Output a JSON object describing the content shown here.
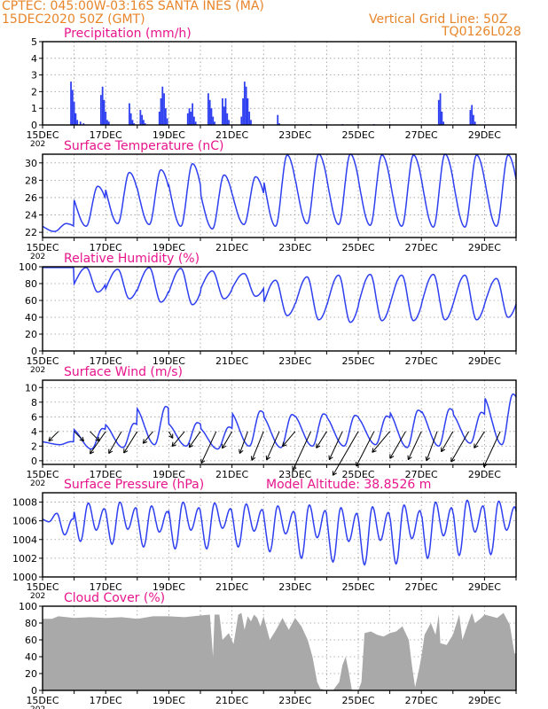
{
  "header": {
    "station": "CPTEC:   045:00W-03:16S   SANTA INES (MA)",
    "date": "15DEC2020 50Z (GMT)",
    "grid": "Vertical Grid Line: 50Z",
    "code": "TQ0126L028"
  },
  "colors": {
    "header": "#e8852a",
    "title": "#e8148c",
    "series": "#2e3ff0",
    "cloud": "#a9a9a9",
    "wind_arrow": "#000000"
  },
  "x_axis": {
    "labels": [
      "15DEC",
      "17DEC",
      "19DEC",
      "21DEC",
      "23DEC",
      "25DEC",
      "27DEC",
      "29DEC"
    ],
    "year_stub": "202"
  },
  "chart_data": [
    {
      "id": "precip",
      "type": "bar",
      "title": "Precipitation  (mm/h)",
      "ylim": [
        0,
        5
      ],
      "yticks": [
        "0",
        "1",
        "2",
        "3",
        "4",
        "5"
      ],
      "days": [
        0,
        15
      ],
      "grid": true,
      "bars": [
        [
          0.9,
          2.6
        ],
        [
          0.95,
          2.1
        ],
        [
          1.0,
          1.4
        ],
        [
          1.05,
          0.7
        ],
        [
          1.1,
          0.3
        ],
        [
          1.2,
          0.2
        ],
        [
          1.3,
          0.1
        ],
        [
          1.85,
          1.8
        ],
        [
          1.9,
          2.3
        ],
        [
          1.95,
          1.5
        ],
        [
          2.0,
          0.8
        ],
        [
          2.05,
          0.3
        ],
        [
          2.1,
          0.2
        ],
        [
          2.75,
          1.3
        ],
        [
          2.8,
          0.7
        ],
        [
          2.85,
          0.3
        ],
        [
          2.9,
          0.1
        ],
        [
          3.1,
          0.9
        ],
        [
          3.15,
          0.6
        ],
        [
          3.2,
          0.3
        ],
        [
          3.25,
          0.1
        ],
        [
          3.7,
          0.8
        ],
        [
          3.75,
          1.6
        ],
        [
          3.8,
          2.3
        ],
        [
          3.85,
          1.9
        ],
        [
          3.9,
          1.0
        ],
        [
          3.95,
          0.4
        ],
        [
          4.6,
          0.7
        ],
        [
          4.65,
          1.0
        ],
        [
          4.7,
          0.8
        ],
        [
          4.75,
          1.3
        ],
        [
          4.8,
          0.5
        ],
        [
          4.85,
          0.2
        ],
        [
          5.25,
          1.9
        ],
        [
          5.3,
          1.5
        ],
        [
          5.35,
          1.0
        ],
        [
          5.4,
          0.5
        ],
        [
          5.45,
          0.2
        ],
        [
          5.7,
          1.6
        ],
        [
          5.75,
          1.1
        ],
        [
          5.8,
          1.6
        ],
        [
          5.85,
          0.7
        ],
        [
          5.9,
          0.3
        ],
        [
          6.3,
          0.5
        ],
        [
          6.35,
          1.6
        ],
        [
          6.4,
          2.6
        ],
        [
          6.45,
          2.3
        ],
        [
          6.5,
          1.6
        ],
        [
          6.55,
          0.8
        ],
        [
          6.6,
          0.3
        ],
        [
          7.45,
          0.6
        ],
        [
          7.5,
          0.1
        ],
        [
          8.5,
          0.05
        ],
        [
          9.0,
          0.05
        ],
        [
          9.5,
          0.05
        ],
        [
          10.0,
          0.05
        ],
        [
          10.5,
          0.05
        ],
        [
          11.0,
          0.05
        ],
        [
          12.55,
          1.5
        ],
        [
          12.6,
          1.9
        ],
        [
          12.65,
          0.8
        ],
        [
          12.7,
          0.2
        ],
        [
          13.55,
          0.9
        ],
        [
          13.6,
          1.2
        ],
        [
          13.65,
          0.6
        ],
        [
          13.7,
          0.2
        ]
      ]
    },
    {
      "id": "temp",
      "type": "line",
      "title": "Surface Temperature  (nC)",
      "ylim": [
        21.4,
        31
      ],
      "ytick_values": [
        22,
        24,
        26,
        28,
        30
      ],
      "days": [
        0,
        15
      ],
      "grid": true,
      "pattern": {
        "min_time_of_day": 0.38,
        "peak_time_of_day": 0.75,
        "daily_min": [
          22.1,
          22.7,
          23.0,
          22.9,
          22.7,
          22.4,
          22.9,
          22.7,
          23.0,
          22.9,
          22.8,
          22.7,
          22.6,
          22.6,
          22.7,
          22.7
        ],
        "daily_max": [
          23.0,
          27.3,
          28.9,
          29.2,
          29.9,
          28.6,
          28.4,
          30.9,
          31.0,
          31.0,
          30.9,
          30.9,
          31.0,
          30.9,
          30.9,
          30.9
        ]
      }
    },
    {
      "id": "rh",
      "type": "line",
      "title": "Relative Humidity  (%)",
      "ylim": [
        0,
        100
      ],
      "ytick_values": [
        0,
        20,
        40,
        60,
        80,
        100
      ],
      "days": [
        0,
        15
      ],
      "grid": true,
      "pattern": {
        "min_time_of_day": 0.75,
        "peak_time_of_day": 0.38,
        "daily_min": [
          99,
          70,
          62,
          58,
          55,
          62,
          65,
          42,
          37,
          34,
          36,
          36,
          37,
          37,
          40,
          40
        ],
        "daily_max": [
          99,
          99,
          97,
          99,
          98,
          95,
          92,
          84,
          88,
          90,
          91,
          90,
          91,
          90,
          86,
          78
        ]
      }
    },
    {
      "id": "wind",
      "type": "line",
      "title": "Surface Wind  (m/s)",
      "ylim": [
        -0.5,
        11
      ],
      "ytick_values": [
        0,
        2,
        4,
        6,
        8,
        10
      ],
      "days": [
        0,
        15
      ],
      "grid": true,
      "pattern": {
        "min_time_of_day": 0.55,
        "peak_time_of_day": 0.9,
        "daily_min": [
          2.2,
          1.6,
          1.8,
          2.2,
          2.0,
          1.6,
          2.0,
          1.8,
          2.0,
          2.0,
          2.2,
          1.8,
          2.0,
          2.4,
          2.2,
          2.6
        ],
        "daily_max": [
          2.6,
          4.4,
          5.1,
          7.4,
          5.2,
          4.6,
          6.8,
          6.3,
          6.4,
          6.2,
          6.1,
          6.9,
          7.1,
          6.6,
          9.1,
          8.0
        ]
      },
      "arrows": [
        {
          "t": 0.5,
          "s": 0.7,
          "dir": 225
        },
        {
          "t": 1.0,
          "s": 0.7,
          "dir": 315
        },
        {
          "t": 1.5,
          "s": 0.7,
          "dir": 315
        },
        {
          "t": 2.0,
          "s": 1.4,
          "dir": 235
        },
        {
          "t": 2.5,
          "s": 1.3,
          "dir": 240
        },
        {
          "t": 3.0,
          "s": 1.3,
          "dir": 238
        },
        {
          "t": 3.5,
          "s": 0.8,
          "dir": 230
        },
        {
          "t": 4.0,
          "s": 0.4,
          "dir": 300
        },
        {
          "t": 4.5,
          "s": 1.0,
          "dir": 230
        },
        {
          "t": 5.0,
          "s": 1.0,
          "dir": 235
        },
        {
          "t": 5.5,
          "s": 1.8,
          "dir": 245
        },
        {
          "t": 6.0,
          "s": 1.0,
          "dir": 240
        },
        {
          "t": 6.5,
          "s": 1.2,
          "dir": 250
        },
        {
          "t": 7.0,
          "s": 1.6,
          "dir": 248
        },
        {
          "t": 7.5,
          "s": 1.6,
          "dir": 246
        },
        {
          "t": 8.0,
          "s": 1.0,
          "dir": 230
        },
        {
          "t": 8.5,
          "s": 2.2,
          "dir": 245
        },
        {
          "t": 9.0,
          "s": 1.0,
          "dir": 238
        },
        {
          "t": 9.5,
          "s": 1.6,
          "dir": 245
        },
        {
          "t": 10.0,
          "s": 2.6,
          "dir": 240
        },
        {
          "t": 10.5,
          "s": 2.0,
          "dir": 243
        },
        {
          "t": 11.0,
          "s": 1.4,
          "dir": 230
        },
        {
          "t": 11.5,
          "s": 1.6,
          "dir": 240
        },
        {
          "t": 12.0,
          "s": 1.6,
          "dir": 245
        },
        {
          "t": 12.5,
          "s": 1.6,
          "dir": 250
        },
        {
          "t": 13.0,
          "s": 1.2,
          "dir": 240
        },
        {
          "t": 13.5,
          "s": 1.8,
          "dir": 240
        },
        {
          "t": 14.0,
          "s": 1.0,
          "dir": 238
        },
        {
          "t": 14.5,
          "s": 2.0,
          "dir": 245
        }
      ]
    },
    {
      "id": "press",
      "type": "line",
      "title": "Surface Pressure  (hPa)",
      "extra_label": "Model Altitude: 38.8526  m",
      "ylim": [
        1000,
        1009
      ],
      "ytick_values": [
        1000,
        1002,
        1004,
        1006,
        1008
      ],
      "days": [
        0,
        15
      ],
      "grid": true,
      "semidiurnal": {
        "maxima_time_of_day": [
          0.45,
          0.95
        ],
        "minima_time_of_day": [
          0.2,
          0.7
        ],
        "daily_max": [
          1006.8,
          1007.9,
          1008.0,
          1007.6,
          1008.0,
          1007.9,
          1007.8,
          1007.6,
          1007.7,
          1007.4,
          1007.5,
          1007.7,
          1008.0,
          1008.2,
          1008.1,
          1008.0
        ],
        "daily_min": [
          1005.9,
          1003.8,
          1003.5,
          1003.2,
          1003.0,
          1003.0,
          1003.2,
          1002.7,
          1002.0,
          1001.6,
          1001.3,
          1001.4,
          1002.0,
          1002.3,
          1002.4,
          1003.3
        ],
        "secondary_min": [
          1004.5,
          1005.0,
          1005.1,
          1004.8,
          1005.0,
          1005.2,
          1004.9,
          1004.6,
          1004.2,
          1003.8,
          1003.9,
          1004.1,
          1004.4,
          1004.8,
          1005.0,
          1005.0
        ]
      }
    },
    {
      "id": "cloud",
      "type": "area",
      "title": "Cloud Cover  (%)",
      "ylim": [
        0,
        100
      ],
      "ytick_values": [
        0,
        20,
        40,
        60,
        80,
        100
      ],
      "days": [
        0,
        15
      ],
      "grid": true,
      "points": [
        [
          0,
          85
        ],
        [
          0.3,
          85
        ],
        [
          0.5,
          88
        ],
        [
          1.0,
          86
        ],
        [
          1.5,
          87
        ],
        [
          2.0,
          86
        ],
        [
          2.5,
          87
        ],
        [
          3.0,
          85
        ],
        [
          3.5,
          88
        ],
        [
          4.0,
          88
        ],
        [
          4.5,
          87
        ],
        [
          5.0,
          89
        ],
        [
          5.3,
          90
        ],
        [
          5.4,
          40
        ],
        [
          5.45,
          90
        ],
        [
          5.6,
          90
        ],
        [
          5.7,
          60
        ],
        [
          5.9,
          68
        ],
        [
          6.05,
          55
        ],
        [
          6.2,
          90
        ],
        [
          6.3,
          92
        ],
        [
          6.4,
          72
        ],
        [
          6.5,
          88
        ],
        [
          6.6,
          82
        ],
        [
          6.7,
          90
        ],
        [
          6.8,
          86
        ],
        [
          6.9,
          76
        ],
        [
          7.0,
          88
        ],
        [
          7.2,
          60
        ],
        [
          7.4,
          72
        ],
        [
          7.6,
          86
        ],
        [
          7.8,
          72
        ],
        [
          8.0,
          86
        ],
        [
          8.2,
          76
        ],
        [
          8.4,
          60
        ],
        [
          8.55,
          40
        ],
        [
          8.7,
          10
        ],
        [
          8.8,
          2
        ],
        [
          9.0,
          0
        ],
        [
          9.2,
          0
        ],
        [
          9.4,
          10
        ],
        [
          9.5,
          30
        ],
        [
          9.6,
          40
        ],
        [
          9.7,
          22
        ],
        [
          9.8,
          0
        ],
        [
          10.0,
          0
        ],
        [
          10.1,
          10
        ],
        [
          10.2,
          68
        ],
        [
          10.4,
          70
        ],
        [
          10.6,
          66
        ],
        [
          10.8,
          64
        ],
        [
          11.0,
          68
        ],
        [
          11.2,
          70
        ],
        [
          11.4,
          76
        ],
        [
          11.6,
          60
        ],
        [
          11.7,
          30
        ],
        [
          11.8,
          4
        ],
        [
          11.9,
          20
        ],
        [
          12.0,
          40
        ],
        [
          12.1,
          66
        ],
        [
          12.3,
          80
        ],
        [
          12.45,
          66
        ],
        [
          12.55,
          90
        ],
        [
          12.6,
          56
        ],
        [
          12.8,
          54
        ],
        [
          13.0,
          66
        ],
        [
          13.2,
          90
        ],
        [
          13.3,
          60
        ],
        [
          13.5,
          82
        ],
        [
          13.6,
          92
        ],
        [
          13.7,
          80
        ],
        [
          13.9,
          86
        ],
        [
          14.0,
          90
        ],
        [
          14.2,
          88
        ],
        [
          14.4,
          86
        ],
        [
          14.6,
          92
        ],
        [
          14.8,
          78
        ],
        [
          14.95,
          44
        ],
        [
          15.0,
          44
        ]
      ]
    }
  ]
}
